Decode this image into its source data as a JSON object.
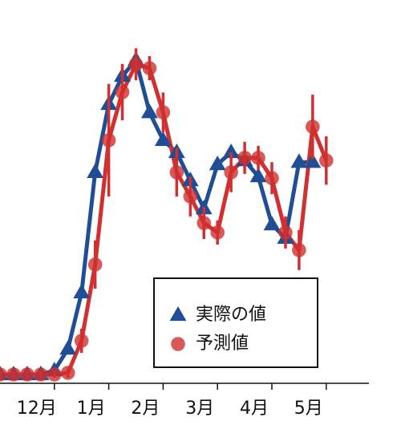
{
  "chart_data": {
    "type": "line",
    "categories": [
      null,
      null,
      null,
      null,
      "12月",
      null,
      null,
      null,
      "1月",
      null,
      null,
      null,
      "2月",
      null,
      null,
      null,
      "3月",
      null,
      null,
      null,
      "4月",
      null,
      null,
      null,
      "5月"
    ],
    "series": [
      {
        "name": "実際の値",
        "color": "#1f4e96",
        "marker": "triangle",
        "values": [
          2.7,
          2.7,
          2.7,
          2.7,
          3.9,
          10.5,
          27.7,
          64.5,
          85.3,
          93.9,
          98.8,
          82.8,
          74.3,
          70.6,
          62.0,
          53.4,
          66.9,
          70.6,
          68.1,
          63.2,
          48.5,
          44.4,
          67.6,
          67.6,
          null
        ]
      },
      {
        "name": "予測値",
        "color": "#d03030",
        "marker": "circle",
        "values": [
          2.7,
          2.7,
          2.7,
          2.7,
          2.7,
          3.2,
          13.0,
          36.3,
          74.3,
          89.0,
          97.5,
          96.3,
          82.8,
          64.5,
          57.1,
          49.0,
          46.1,
          64.5,
          68.9,
          68.9,
          62.7,
          46.1,
          40.7,
          78.4,
          68.1
        ],
        "errors": [
          1.0,
          1.0,
          1.0,
          1.0,
          1.0,
          1.5,
          3.7,
          7.4,
          17.2,
          8.6,
          4.9,
          3.7,
          6.1,
          7.4,
          6.1,
          4.9,
          3.7,
          6.1,
          4.9,
          3.7,
          4.9,
          4.9,
          6.1,
          9.8,
          7.4
        ]
      }
    ],
    "ylim": [
      0,
      100
    ],
    "legend": "lower right"
  }
}
